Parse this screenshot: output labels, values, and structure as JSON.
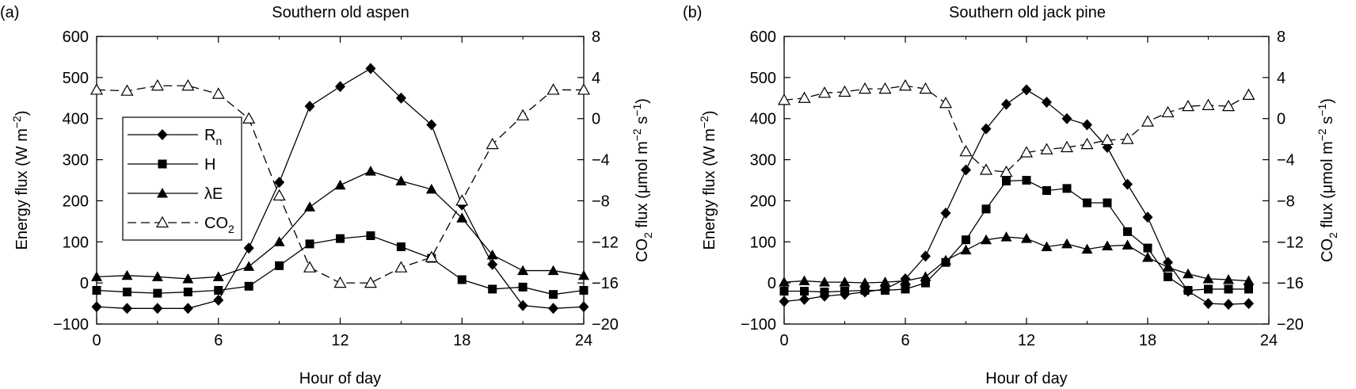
{
  "chart_data": [
    {
      "type": "line",
      "panel_label": "(a)",
      "title": "Southern old aspen",
      "xlabel": "Hour of day",
      "ylabel_left": "Energy flux (W m",
      "ylabel_left_sup": "−2",
      "ylabel_left_end": ")",
      "ylabel_right": "CO",
      "ylabel_right_sub": "2",
      "ylabel_right_mid": " flux (μmol m",
      "ylabel_right_sup1": "−2",
      "ylabel_right_s": " s",
      "ylabel_right_sup2": "−1",
      "ylabel_right_end": ")",
      "xlim": [
        0,
        24
      ],
      "ylim_left": [
        -100,
        600
      ],
      "ylim_right": [
        -20,
        8
      ],
      "xticks": [
        "0",
        "6",
        "12",
        "18",
        "24"
      ],
      "yticks_left": [
        "−100",
        "0",
        "100",
        "200",
        "300",
        "400",
        "500",
        "600"
      ],
      "yticks_right": [
        "−20",
        "−16",
        "−12",
        "−8",
        "−4",
        "0",
        "4",
        "8"
      ],
      "legend_position": "center-left",
      "series": [
        {
          "name": "R",
          "name_sub": "n",
          "axis": "left",
          "marker": "diamond",
          "line": "solid",
          "x": [
            0,
            1.5,
            3,
            4.5,
            6,
            7.5,
            9,
            10.5,
            12,
            13.5,
            15,
            16.5,
            18,
            19.5,
            21,
            22.5,
            24
          ],
          "y": [
            -58,
            -62,
            -62,
            -62,
            -42,
            85,
            245,
            430,
            478,
            522,
            450,
            385,
            190,
            45,
            -55,
            -62,
            -58
          ]
        },
        {
          "name": "H",
          "axis": "left",
          "marker": "square",
          "line": "solid",
          "x": [
            0,
            1.5,
            3,
            4.5,
            6,
            7.5,
            9,
            10.5,
            12,
            13.5,
            15,
            16.5,
            18,
            19.5,
            21,
            22.5,
            24
          ],
          "y": [
            -18,
            -22,
            -25,
            -22,
            -18,
            -8,
            42,
            95,
            108,
            115,
            88,
            60,
            8,
            -15,
            -10,
            -28,
            -18
          ]
        },
        {
          "name": "λE",
          "axis": "left",
          "marker": "triangle",
          "line": "solid",
          "x": [
            0,
            1.5,
            3,
            4.5,
            6,
            7.5,
            9,
            10.5,
            12,
            13.5,
            15,
            16.5,
            18,
            19.5,
            21,
            22.5,
            24
          ],
          "y": [
            15,
            18,
            15,
            10,
            15,
            40,
            100,
            185,
            238,
            272,
            248,
            228,
            158,
            68,
            30,
            30,
            18
          ]
        },
        {
          "name": "CO",
          "name_sub": "2",
          "axis": "right",
          "marker": "open-triangle",
          "line": "dashed",
          "x": [
            0,
            1.5,
            3,
            4.5,
            6,
            7.5,
            9,
            10.5,
            12,
            13.5,
            15,
            16.5,
            18,
            19.5,
            21,
            22.5,
            24
          ],
          "y": [
            2.8,
            2.7,
            3.2,
            3.2,
            2.4,
            0,
            -7.5,
            -14.5,
            -16,
            -16,
            -14.5,
            -13.5,
            -8,
            -2.5,
            0.3,
            2.8,
            2.8
          ]
        }
      ]
    },
    {
      "type": "line",
      "panel_label": "(b)",
      "title": "Southern old jack pine",
      "xlabel": "Hour of day",
      "ylabel_left": "Energy flux (W m",
      "ylabel_left_sup": "−2",
      "ylabel_left_end": ")",
      "ylabel_right": "CO",
      "ylabel_right_sub": "2",
      "ylabel_right_mid": " flux (μmol m",
      "ylabel_right_sup1": "−2",
      "ylabel_right_s": " s",
      "ylabel_right_sup2": "−1",
      "ylabel_right_end": ")",
      "xlim": [
        0,
        24
      ],
      "ylim_left": [
        -100,
        600
      ],
      "ylim_right": [
        -20,
        8
      ],
      "xticks": [
        "0",
        "6",
        "12",
        "18",
        "24"
      ],
      "yticks_left": [
        "−100",
        "0",
        "100",
        "200",
        "300",
        "400",
        "500",
        "600"
      ],
      "yticks_right": [
        "−20",
        "−16",
        "−12",
        "−8",
        "−4",
        "0",
        "4",
        "8"
      ],
      "series": [
        {
          "name": "R",
          "name_sub": "n",
          "axis": "left",
          "marker": "diamond",
          "line": "solid",
          "x": [
            0,
            1,
            2,
            3,
            4,
            5,
            6,
            7,
            8,
            9,
            10,
            11,
            12,
            13,
            14,
            15,
            16,
            17,
            18,
            19,
            20,
            21,
            22,
            23
          ],
          "y": [
            -45,
            -40,
            -32,
            -28,
            -22,
            -15,
            10,
            65,
            170,
            275,
            375,
            435,
            470,
            440,
            400,
            385,
            330,
            240,
            160,
            50,
            -20,
            -50,
            -52,
            -50
          ]
        },
        {
          "name": "H",
          "axis": "left",
          "marker": "square",
          "line": "solid",
          "x": [
            0,
            1,
            2,
            3,
            4,
            5,
            6,
            7,
            8,
            9,
            10,
            11,
            12,
            13,
            14,
            15,
            16,
            17,
            18,
            19,
            20,
            21,
            22,
            23
          ],
          "y": [
            -20,
            -20,
            -22,
            -20,
            -18,
            -18,
            -15,
            0,
            50,
            105,
            180,
            248,
            250,
            225,
            230,
            195,
            195,
            125,
            85,
            15,
            -18,
            -15,
            -15,
            -15
          ]
        },
        {
          "name": "λE",
          "axis": "left",
          "marker": "triangle",
          "line": "solid",
          "x": [
            0,
            1,
            2,
            3,
            4,
            5,
            6,
            7,
            8,
            9,
            10,
            11,
            12,
            13,
            14,
            15,
            16,
            17,
            18,
            19,
            20,
            21,
            22,
            23
          ],
          "y": [
            2,
            5,
            2,
            2,
            0,
            2,
            5,
            15,
            55,
            80,
            105,
            112,
            108,
            88,
            95,
            82,
            90,
            92,
            62,
            38,
            22,
            10,
            8,
            5
          ]
        },
        {
          "name": "CO",
          "name_sub": "2",
          "axis": "right",
          "marker": "open-triangle",
          "line": "dashed",
          "x": [
            0,
            1,
            2,
            3,
            4,
            5,
            6,
            7,
            8,
            9,
            10,
            11,
            12,
            13,
            14,
            15,
            16,
            17,
            18,
            19,
            20,
            21,
            22,
            23
          ],
          "y": [
            1.8,
            2,
            2.5,
            2.6,
            2.9,
            2.9,
            3.2,
            2.9,
            1.5,
            -3.2,
            -5,
            -5.2,
            -3.3,
            -3,
            -2.8,
            -2.5,
            -2.1,
            -2,
            -0.3,
            0.6,
            1.2,
            1.3,
            1.2,
            2.3
          ]
        }
      ]
    }
  ]
}
